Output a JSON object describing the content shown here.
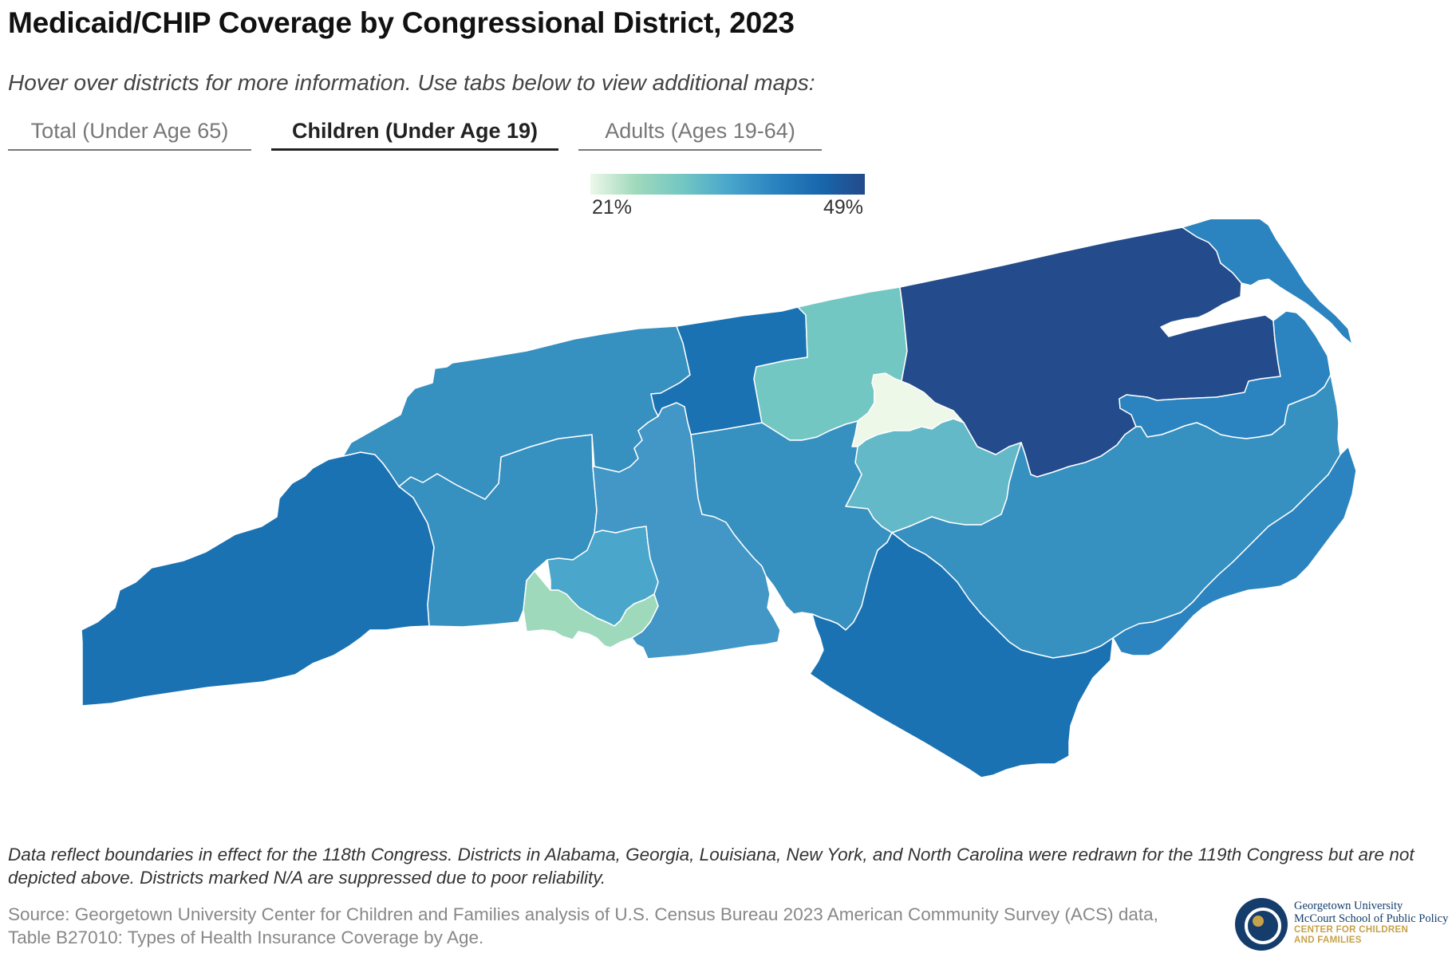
{
  "header": {
    "title": "Medicaid/CHIP Coverage by Congressional District, 2023",
    "subtitle": "Hover over districts for more information. Use tabs below to view additional maps:"
  },
  "tabs": [
    {
      "label": "Total (Under Age 65)",
      "active": false
    },
    {
      "label": "Children (Under Age 19)",
      "active": true
    },
    {
      "label": "Adults (Ages 19-64)",
      "active": false
    }
  ],
  "legend": {
    "min_label": "21%",
    "max_label": "49%",
    "colors": [
      "#edf8e9",
      "#9fd9bc",
      "#73c7c3",
      "#4aa7cb",
      "#2b84c0",
      "#1868ad",
      "#234a8a"
    ]
  },
  "map": {
    "state": "North Carolina",
    "districts": [
      {
        "id": "western",
        "color": "#1a72b2"
      },
      {
        "id": "foothills",
        "color": "#3690c0"
      },
      {
        "id": "northwest",
        "color": "#3690c0"
      },
      {
        "id": "north-central",
        "color": "#1a72b2"
      },
      {
        "id": "north-triangle",
        "color": "#73c7c3"
      },
      {
        "id": "northeast",
        "color": "#244b8b"
      },
      {
        "id": "outer-banks",
        "color": "#2b84c0"
      },
      {
        "id": "pamlico",
        "color": "#2b84c0"
      },
      {
        "id": "durham",
        "color": "#edf8e9"
      },
      {
        "id": "wake",
        "color": "#64b9c8"
      },
      {
        "id": "piedmont",
        "color": "#3690c0"
      },
      {
        "id": "central-east",
        "color": "#3690c0"
      },
      {
        "id": "charlotte-north",
        "color": "#4aa7cb"
      },
      {
        "id": "charlotte-south",
        "color": "#9fd9bc"
      },
      {
        "id": "south-central",
        "color": "#4297c6"
      },
      {
        "id": "southeast",
        "color": "#1a72b2"
      },
      {
        "id": "east",
        "color": "#2b84c0"
      }
    ]
  },
  "footer": {
    "note": "Data reflect boundaries in effect for the 118th Congress. Districts in Alabama, Georgia, Louisiana, New York, and North Carolina were redrawn for the 119th Congress but are not depicted above. Districts marked N/A are suppressed due to poor reliability.",
    "source": "Source: Georgetown University Center for Children and Families analysis of U.S. Census Bureau 2023 American Community Survey (ACS) data, Table B27010: Types of Health Insurance Coverage by Age."
  },
  "logo": {
    "line1": "Georgetown University",
    "line2": "McCourt School of Public Policy",
    "line3": "CENTER FOR CHILDREN",
    "line4": "AND FAMILIES"
  }
}
